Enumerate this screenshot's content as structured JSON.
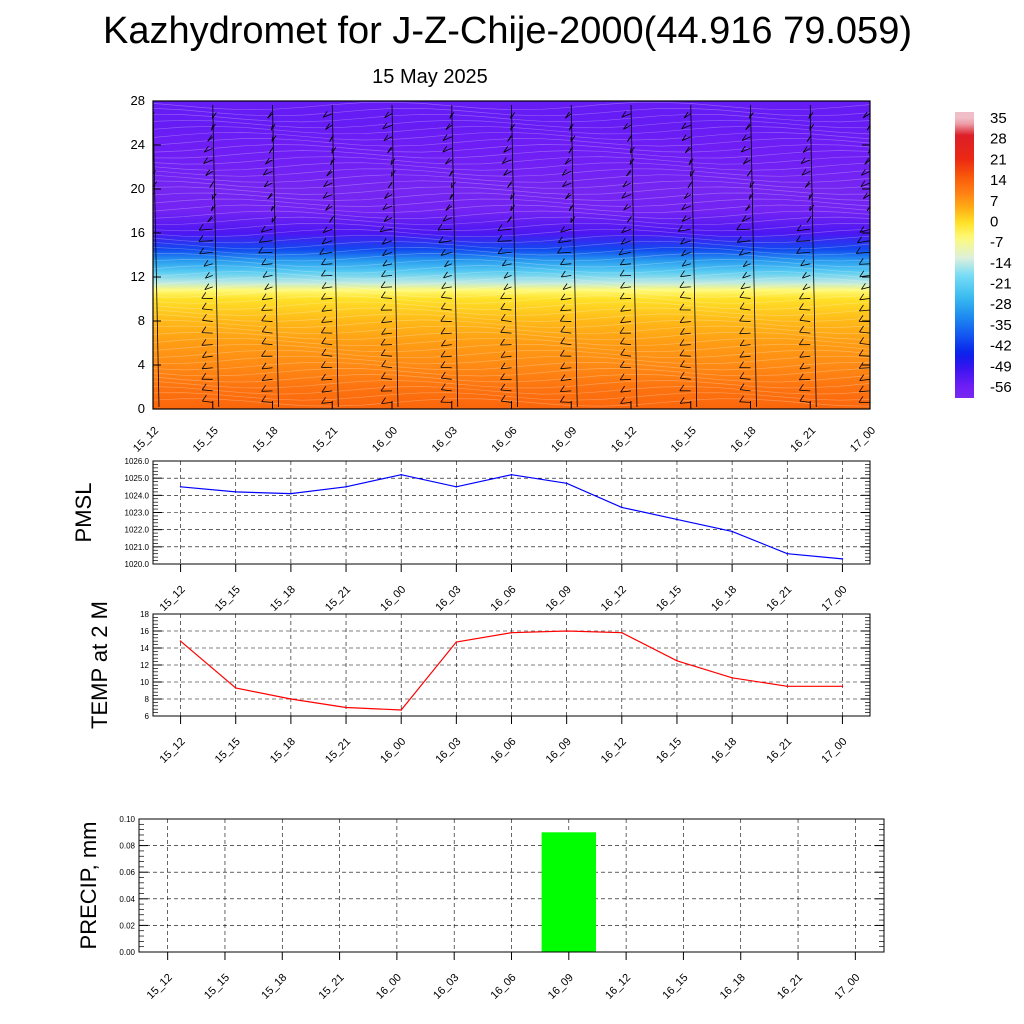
{
  "title": "Kazhydromet for J-Z-Chije-2000(44.916 79.059)",
  "date": "15 May 2025",
  "chart_data": [
    {
      "type": "heatmap",
      "x_ticks": [
        "15_12",
        "15_15",
        "15_18",
        "15_21",
        "16_00",
        "16_03",
        "16_06",
        "16_09",
        "16_12",
        "16_15",
        "16_18",
        "16_21",
        "17_00"
      ],
      "y_ticks": [
        0,
        4,
        8,
        12,
        16,
        20,
        24,
        28
      ],
      "ylim": [
        0,
        28
      ],
      "colorbar_labels": [
        "35",
        "28",
        "21",
        "14",
        "7",
        "0",
        "-7",
        "-14",
        "-21",
        "-28",
        "-35",
        "-42",
        "-49",
        "-56"
      ],
      "profile": [
        {
          "y": 0,
          "v": 14
        },
        {
          "y": 2,
          "v": 12
        },
        {
          "y": 4,
          "v": 9
        },
        {
          "y": 6,
          "v": 7
        },
        {
          "y": 8,
          "v": 4
        },
        {
          "y": 10,
          "v": 0
        },
        {
          "y": 10.8,
          "v": -5
        },
        {
          "y": 11.5,
          "v": -14
        },
        {
          "y": 12.5,
          "v": -22
        },
        {
          "y": 13.5,
          "v": -30
        },
        {
          "y": 14.5,
          "v": -40
        },
        {
          "y": 16,
          "v": -52
        },
        {
          "y": 18,
          "v": -58
        },
        {
          "y": 20,
          "v": -59
        },
        {
          "y": 22,
          "v": -57
        },
        {
          "y": 24,
          "v": -56
        },
        {
          "y": 26,
          "v": -55
        },
        {
          "y": 28,
          "v": -55
        }
      ]
    },
    {
      "type": "line",
      "ylabel": "PMSL",
      "x": [
        "15_12",
        "15_15",
        "15_18",
        "15_21",
        "16_00",
        "16_03",
        "16_06",
        "16_09",
        "16_12",
        "16_15",
        "16_18",
        "16_21",
        "17_00"
      ],
      "series": [
        {
          "values": [
            1024.5,
            1024.2,
            1024.1,
            1024.5,
            1025.2,
            1024.5,
            1025.2,
            1024.7,
            1023.3,
            1022.6,
            1021.9,
            1020.6,
            1020.3
          ]
        }
      ],
      "ylim": [
        1020.0,
        1026.0
      ],
      "y_ticks": [
        "1020.0",
        "1021.0",
        "1022.0",
        "1023.0",
        "1024.0",
        "1025.0",
        "1026.0"
      ],
      "color": "#0000ff"
    },
    {
      "type": "line",
      "ylabel": "TEMP at 2 M",
      "x": [
        "15_12",
        "15_15",
        "15_18",
        "15_21",
        "16_00",
        "16_03",
        "16_06",
        "16_09",
        "16_12",
        "16_15",
        "16_18",
        "16_21",
        "17_00"
      ],
      "series": [
        {
          "values": [
            14.8,
            9.3,
            8.0,
            7.0,
            6.7,
            14.7,
            15.8,
            16.0,
            15.8,
            12.5,
            10.5,
            9.5,
            9.5
          ]
        }
      ],
      "ylim": [
        6,
        18
      ],
      "y_ticks": [
        "6",
        "8",
        "10",
        "12",
        "14",
        "16",
        "18"
      ],
      "color": "#ff0000"
    },
    {
      "type": "bar",
      "ylabel": "PRECIP, mm",
      "categories": [
        "15_12",
        "15_15",
        "15_18",
        "15_21",
        "16_00",
        "16_03",
        "16_06",
        "16_09",
        "16_12",
        "16_15",
        "16_18",
        "16_21",
        "17_00"
      ],
      "values": [
        0,
        0,
        0,
        0,
        0,
        0,
        0,
        0.09,
        0,
        0,
        0,
        0,
        0
      ],
      "ylim": [
        0,
        0.1
      ],
      "y_ticks": [
        "0.00",
        "0.02",
        "0.04",
        "0.06",
        "0.08",
        "0.10"
      ],
      "color": "#00ff00"
    }
  ]
}
